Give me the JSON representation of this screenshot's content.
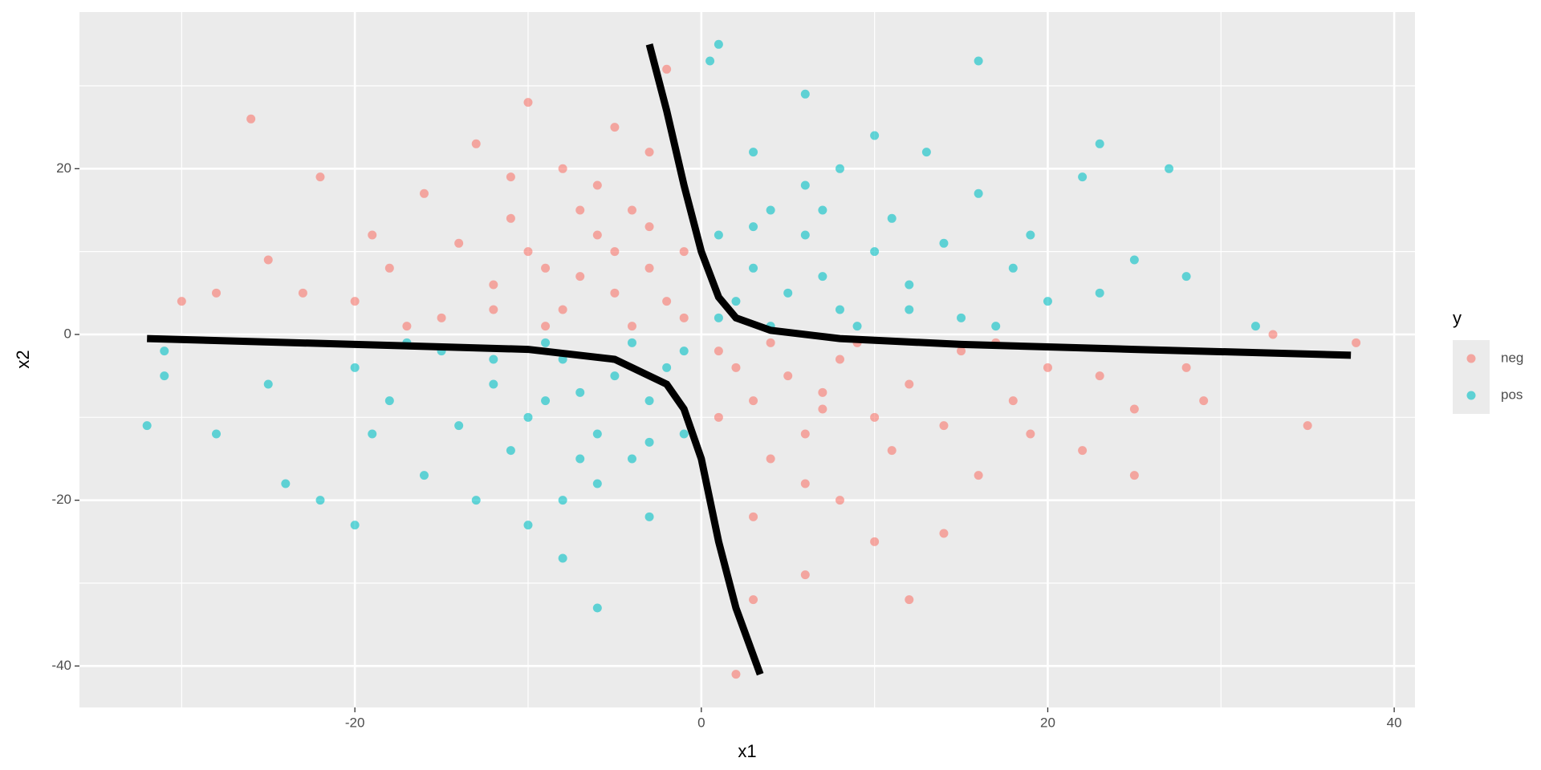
{
  "chart_data": {
    "type": "scatter",
    "x_label": "x1",
    "y_label": "x2",
    "legend_title": "y",
    "xlim": [
      -35.9,
      41.2
    ],
    "ylim": [
      -45.0,
      38.9
    ],
    "xticks": [
      -20,
      0,
      20,
      40
    ],
    "yticks": [
      -40,
      -20,
      0,
      20
    ],
    "grid": true,
    "legend": "right",
    "series": [
      {
        "name": "neg",
        "color": "#F8766D",
        "x": [
          -5,
          -8,
          -3,
          -10,
          -6,
          -2,
          -12,
          -15,
          -7,
          -4,
          -9,
          -1,
          -11,
          -18,
          -20,
          -14,
          -6,
          -3,
          -16,
          -25,
          -22,
          -26,
          -10,
          -5,
          -2,
          -13,
          -17,
          -8,
          -4,
          -1,
          -19,
          -23,
          -28,
          -30,
          -12,
          -7,
          -3,
          -9,
          -5,
          -11,
          5,
          8,
          3,
          10,
          6,
          2,
          12,
          15,
          7,
          4,
          9,
          1,
          11,
          18,
          20,
          14,
          6,
          3,
          16,
          25,
          22,
          10,
          12,
          2,
          3,
          6,
          17,
          8,
          4,
          1,
          19,
          23,
          28,
          35,
          37.8,
          33,
          29,
          14,
          25,
          7
        ],
        "y": [
          5,
          3,
          8,
          10,
          12,
          4,
          6,
          2,
          7,
          15,
          1,
          2,
          14,
          8,
          4,
          11,
          18,
          22,
          17,
          9,
          19,
          26,
          28,
          25,
          32,
          23,
          1,
          20,
          1,
          10,
          12,
          5,
          5,
          4,
          3,
          15,
          13,
          8,
          10,
          19,
          -5,
          -3,
          -8,
          -10,
          -12,
          -4,
          -6,
          -2,
          -7,
          -15,
          -1,
          -2,
          -14,
          -8,
          -4,
          -11,
          -18,
          -22,
          -17,
          -9,
          -14,
          -25,
          -32,
          -41,
          -32,
          -29,
          -1,
          -20,
          -1,
          -10,
          -12,
          -5,
          -4,
          -11,
          -1,
          0,
          -8,
          -24,
          -17,
          -9
        ]
      },
      {
        "name": "pos",
        "color": "#00BFC4",
        "x": [
          5,
          8,
          3,
          10,
          6,
          2,
          12,
          15,
          7,
          4,
          9,
          1,
          11,
          18,
          20,
          14,
          6,
          3,
          16,
          25,
          22,
          23,
          10,
          6,
          1,
          13,
          17,
          8,
          4,
          1,
          19,
          23,
          28,
          32,
          12,
          7,
          3,
          16,
          0.5,
          27,
          -5,
          -8,
          -3,
          -10,
          -6,
          -2,
          -12,
          -15,
          -7,
          -4,
          -9,
          -1,
          -11,
          -18,
          -20,
          -14,
          -6,
          -3,
          -16,
          -25,
          -22,
          -20,
          -10,
          -6,
          -8,
          -13,
          -17,
          -8,
          -4,
          -1,
          -19,
          -24,
          -28,
          -32,
          -31,
          -31,
          -12,
          -7,
          -3,
          -9
        ],
        "y": [
          5,
          3,
          8,
          10,
          12,
          4,
          6,
          2,
          7,
          15,
          1,
          2,
          14,
          8,
          4,
          11,
          18,
          22,
          17,
          9,
          19,
          23,
          24,
          29,
          35,
          22,
          1,
          20,
          1,
          12,
          12,
          5,
          7,
          1,
          3,
          15,
          13,
          33,
          33,
          20,
          -5,
          -3,
          -8,
          -10,
          -12,
          -4,
          -6,
          -2,
          -7,
          -15,
          -1,
          -2,
          -14,
          -8,
          -4,
          -11,
          -18,
          -22,
          -17,
          -6,
          -20,
          -23,
          -23,
          -33,
          -27,
          -20,
          -1,
          -20,
          -1,
          -12,
          -12,
          -18,
          -12,
          -11,
          -5,
          -2,
          -3,
          -15,
          -13,
          -8
        ]
      }
    ],
    "lines": [
      {
        "color": "#000000",
        "x": [
          -3,
          -2,
          -1,
          0,
          1,
          2,
          4,
          8,
          15,
          25,
          37.5
        ],
        "y": [
          35,
          27,
          18,
          10,
          4.5,
          2,
          0.5,
          -0.5,
          -1.2,
          -1.8,
          -2.5
        ]
      },
      {
        "color": "#000000",
        "x": [
          -32,
          -20,
          -10,
          -5,
          -2,
          -1,
          0,
          1,
          2,
          3.4
        ],
        "y": [
          -0.5,
          -1.2,
          -1.8,
          -3,
          -6,
          -9,
          -15,
          -25,
          -33,
          -41
        ]
      }
    ]
  }
}
